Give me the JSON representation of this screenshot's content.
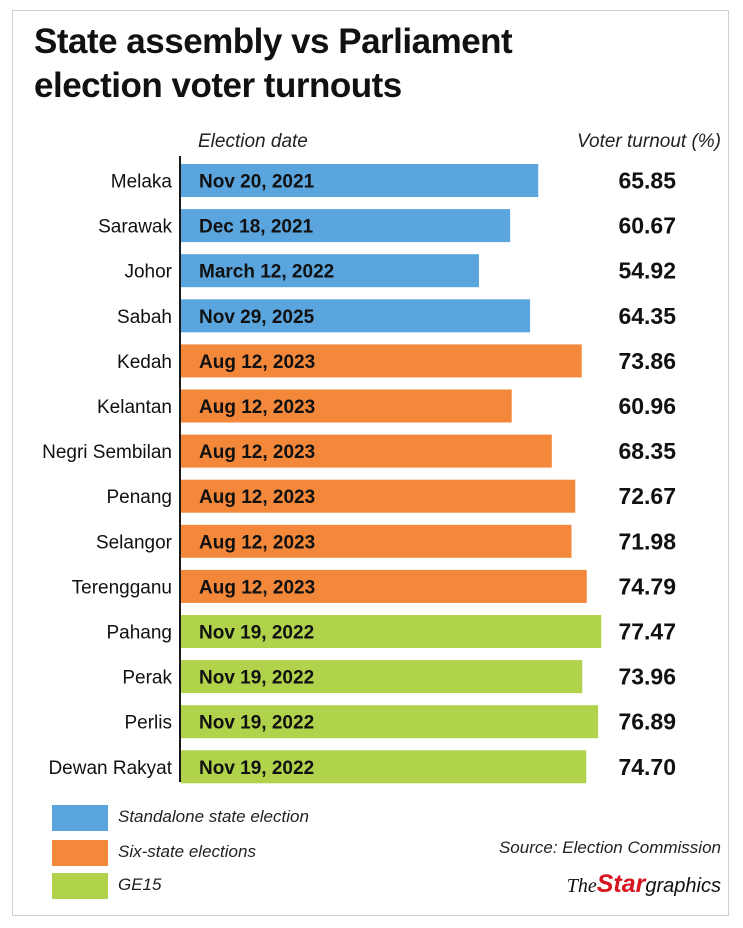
{
  "title": "State assembly vs Parliament election voter turnouts",
  "title_lines": [
    "State assembly vs Parliament",
    "election voter turnouts"
  ],
  "column_headers": {
    "date": "Election date",
    "turnout": "Voter turnout (%)"
  },
  "colors": {
    "standalone": "#5aa5dd",
    "six_state": "#f3873a",
    "ge15": "#b1d34b",
    "axis": "#1a1a1a",
    "brand_red": "#d7141e"
  },
  "chart_data": {
    "type": "bar",
    "orientation": "horizontal",
    "categories": [
      "Melaka",
      "Sarawak",
      "Johor",
      "Sabah",
      "Kedah",
      "Kelantan",
      "Negri Sembilan",
      "Penang",
      "Selangor",
      "Terengganu",
      "Pahang",
      "Perak",
      "Perlis",
      "Dewan Rakyat"
    ],
    "values": [
      65.85,
      60.67,
      54.92,
      64.35,
      73.86,
      60.96,
      68.35,
      72.67,
      71.98,
      74.79,
      77.47,
      73.96,
      76.89,
      74.7
    ],
    "value_labels": [
      "65.85",
      "60.67",
      "54.92",
      "64.35",
      "73.86",
      "60.96",
      "68.35",
      "72.67",
      "71.98",
      "74.79",
      "77.47",
      "73.96",
      "76.89",
      "74.70"
    ],
    "dates": [
      "Nov 20, 2021",
      "Dec 18, 2021",
      "March 12, 2022",
      "Nov 29, 2025",
      "Aug 12, 2023",
      "Aug 12, 2023",
      "Aug 12, 2023",
      "Aug 12, 2023",
      "Aug 12, 2023",
      "Aug 12, 2023",
      "Nov 19, 2022",
      "Nov 19, 2022",
      "Nov 19, 2022",
      "Nov 19, 2022"
    ],
    "groups": [
      "standalone",
      "standalone",
      "standalone",
      "standalone",
      "six_state",
      "six_state",
      "six_state",
      "six_state",
      "six_state",
      "six_state",
      "ge15",
      "ge15",
      "ge15",
      "ge15"
    ],
    "xlim": [
      0,
      80
    ],
    "grid": false,
    "legend": [
      {
        "key": "standalone",
        "label": "Standalone state election"
      },
      {
        "key": "six_state",
        "label": "Six-state elections"
      },
      {
        "key": "ge15",
        "label": "GE15"
      }
    ],
    "legend_position": "bottom-left"
  },
  "source": "Source: Election Commission",
  "brand": {
    "the": "The",
    "star": "Star",
    "graphics": "graphics"
  }
}
